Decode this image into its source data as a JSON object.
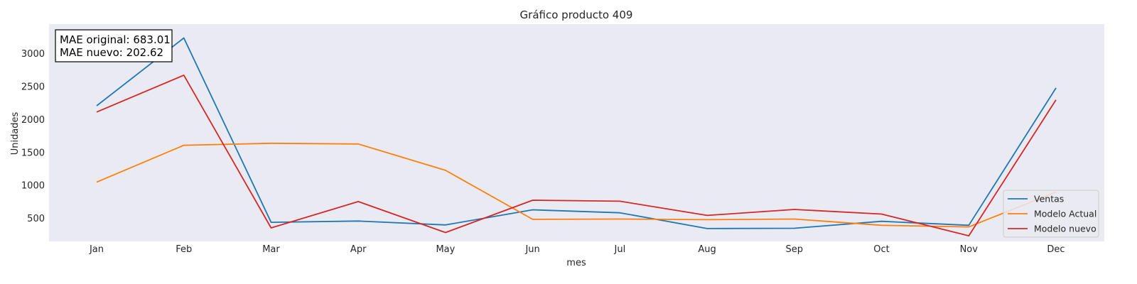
{
  "chart_data": {
    "type": "line",
    "title": "Gráfico producto 409",
    "xlabel": "mes",
    "ylabel": "Unidades",
    "categories": [
      "Jan",
      "Feb",
      "Mar",
      "Apr",
      "May",
      "Jun",
      "Jul",
      "Aug",
      "Sep",
      "Oct",
      "Nov",
      "Dec"
    ],
    "yticks": [
      500,
      1000,
      1500,
      2000,
      2500,
      3000
    ],
    "ylim": [
      150,
      3450
    ],
    "grid": false,
    "legend_position": "bottom-right",
    "series": [
      {
        "name": "Ventas",
        "color": "#1f77b4",
        "values": [
          2210,
          3240,
          440,
          460,
          400,
          630,
          585,
          345,
          350,
          455,
          395,
          2480
        ]
      },
      {
        "name": "Modelo Actual",
        "color": "#ff7f0e",
        "values": [
          1050,
          1610,
          1640,
          1630,
          1230,
          485,
          490,
          480,
          490,
          395,
          370,
          900
        ]
      },
      {
        "name": "Modelo nuevo",
        "color": "#d62728",
        "values": [
          2115,
          2675,
          355,
          755,
          285,
          775,
          760,
          545,
          635,
          565,
          235,
          2300
        ]
      }
    ],
    "annotations": [
      "MAE original: 683.01",
      "MAE nuevo: 202.62"
    ]
  }
}
